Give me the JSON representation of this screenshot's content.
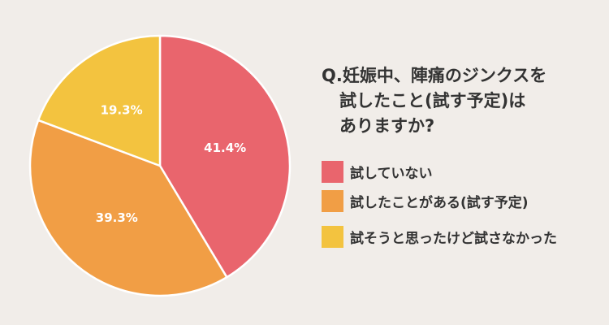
{
  "chart_data": {
    "type": "pie",
    "title": "Q.妊娠中、陣痛のジンクスを試したこと(試す予定)はありますか?",
    "slices": [
      {
        "label": "試していない",
        "value": 41.4,
        "display": "41.4%",
        "color": "#e9656d"
      },
      {
        "label": "試したことがある(試す予定)",
        "value": 39.3,
        "display": "39.3%",
        "color": "#f19e45"
      },
      {
        "label": "試そうと思ったけど試さなかった",
        "value": 19.3,
        "display": "19.3%",
        "color": "#f3c33f"
      }
    ],
    "legend_position": "right"
  },
  "question": {
    "line1": "Q.妊娠中、陣痛のジンクスを",
    "line2": "試したこと(試す予定)は",
    "line3": "ありますか?"
  },
  "legend": [
    {
      "label": "試していない",
      "color": "#e9656d"
    },
    {
      "label": "試したことがある(試す予定)",
      "color": "#f19e45"
    },
    {
      "label": "試そうと思ったけど試さなかった",
      "color": "#f3c33f"
    }
  ]
}
